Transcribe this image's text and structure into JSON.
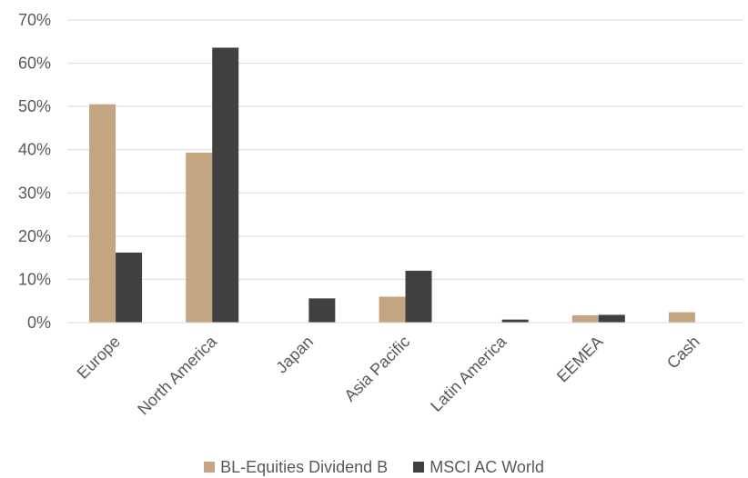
{
  "chart_data": {
    "type": "bar",
    "categories": [
      "Europe",
      "North America",
      "Japan",
      "Asia Pacific",
      "Latin America",
      "EEMEA",
      "Cash"
    ],
    "series": [
      {
        "name": "BL-Equities Dividend B",
        "color": "#c4a582",
        "values": [
          50.5,
          39.3,
          0.0,
          6.0,
          0.0,
          1.7,
          2.4
        ]
      },
      {
        "name": "MSCI AC World",
        "color": "#404040",
        "values": [
          16.2,
          63.6,
          5.6,
          12.0,
          0.7,
          1.8,
          0.0
        ]
      }
    ],
    "title": "",
    "xlabel": "",
    "ylabel": "",
    "ylim": [
      0,
      70
    ],
    "yticks": [
      "0%",
      "10%",
      "20%",
      "30%",
      "40%",
      "50%",
      "60%",
      "70%"
    ],
    "grid": true,
    "legend_position": "bottom"
  }
}
